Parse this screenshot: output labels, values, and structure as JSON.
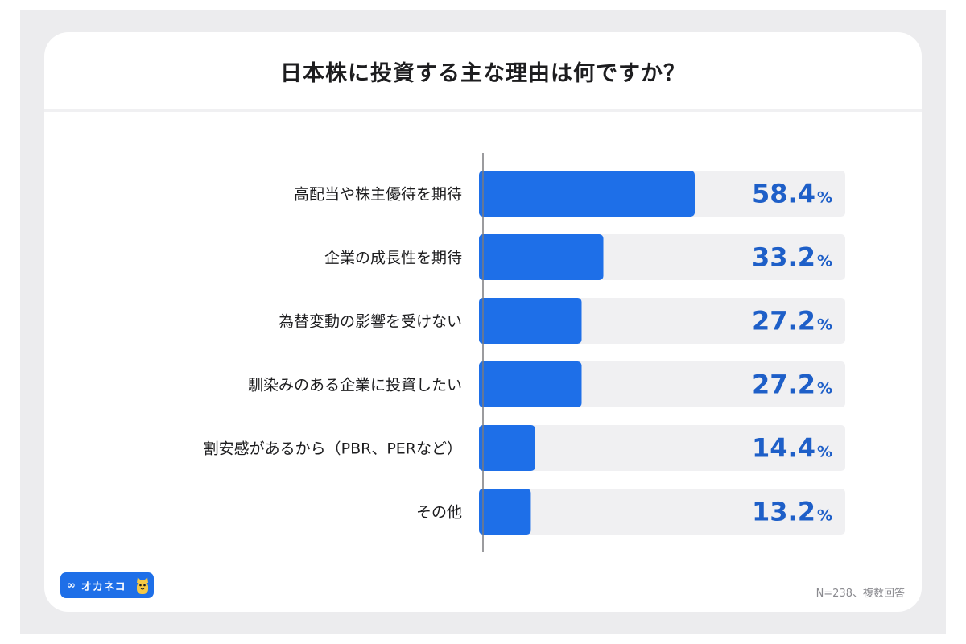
{
  "chart_data": {
    "type": "bar",
    "orientation": "horizontal",
    "title": "日本株に投資する主な理由は何ですか？",
    "categories": [
      "高配当や株主優待を期待",
      "企業の成長性を期待",
      "為替変動の影響を受けない",
      "馴染みのある企業に投資したい",
      "割安感があるから（PBR、PERなど）",
      "その他"
    ],
    "values": [
      58.4,
      33.2,
      27.2,
      27.2,
      14.4,
      13.2
    ],
    "value_labels": [
      "58.4",
      "33.2",
      "27.2",
      "27.2",
      "14.4",
      "13.2"
    ],
    "unit": "%",
    "xlim": [
      0,
      100
    ],
    "grid": false,
    "colors": {
      "bar": "#1e6fe8",
      "track": "#f0f0f2",
      "value_text": "#1e5fc8"
    }
  },
  "footer": {
    "logo_text": "オカネコ",
    "logo_icon": "cat-mascot-icon",
    "note": "N=238、複数回答"
  }
}
